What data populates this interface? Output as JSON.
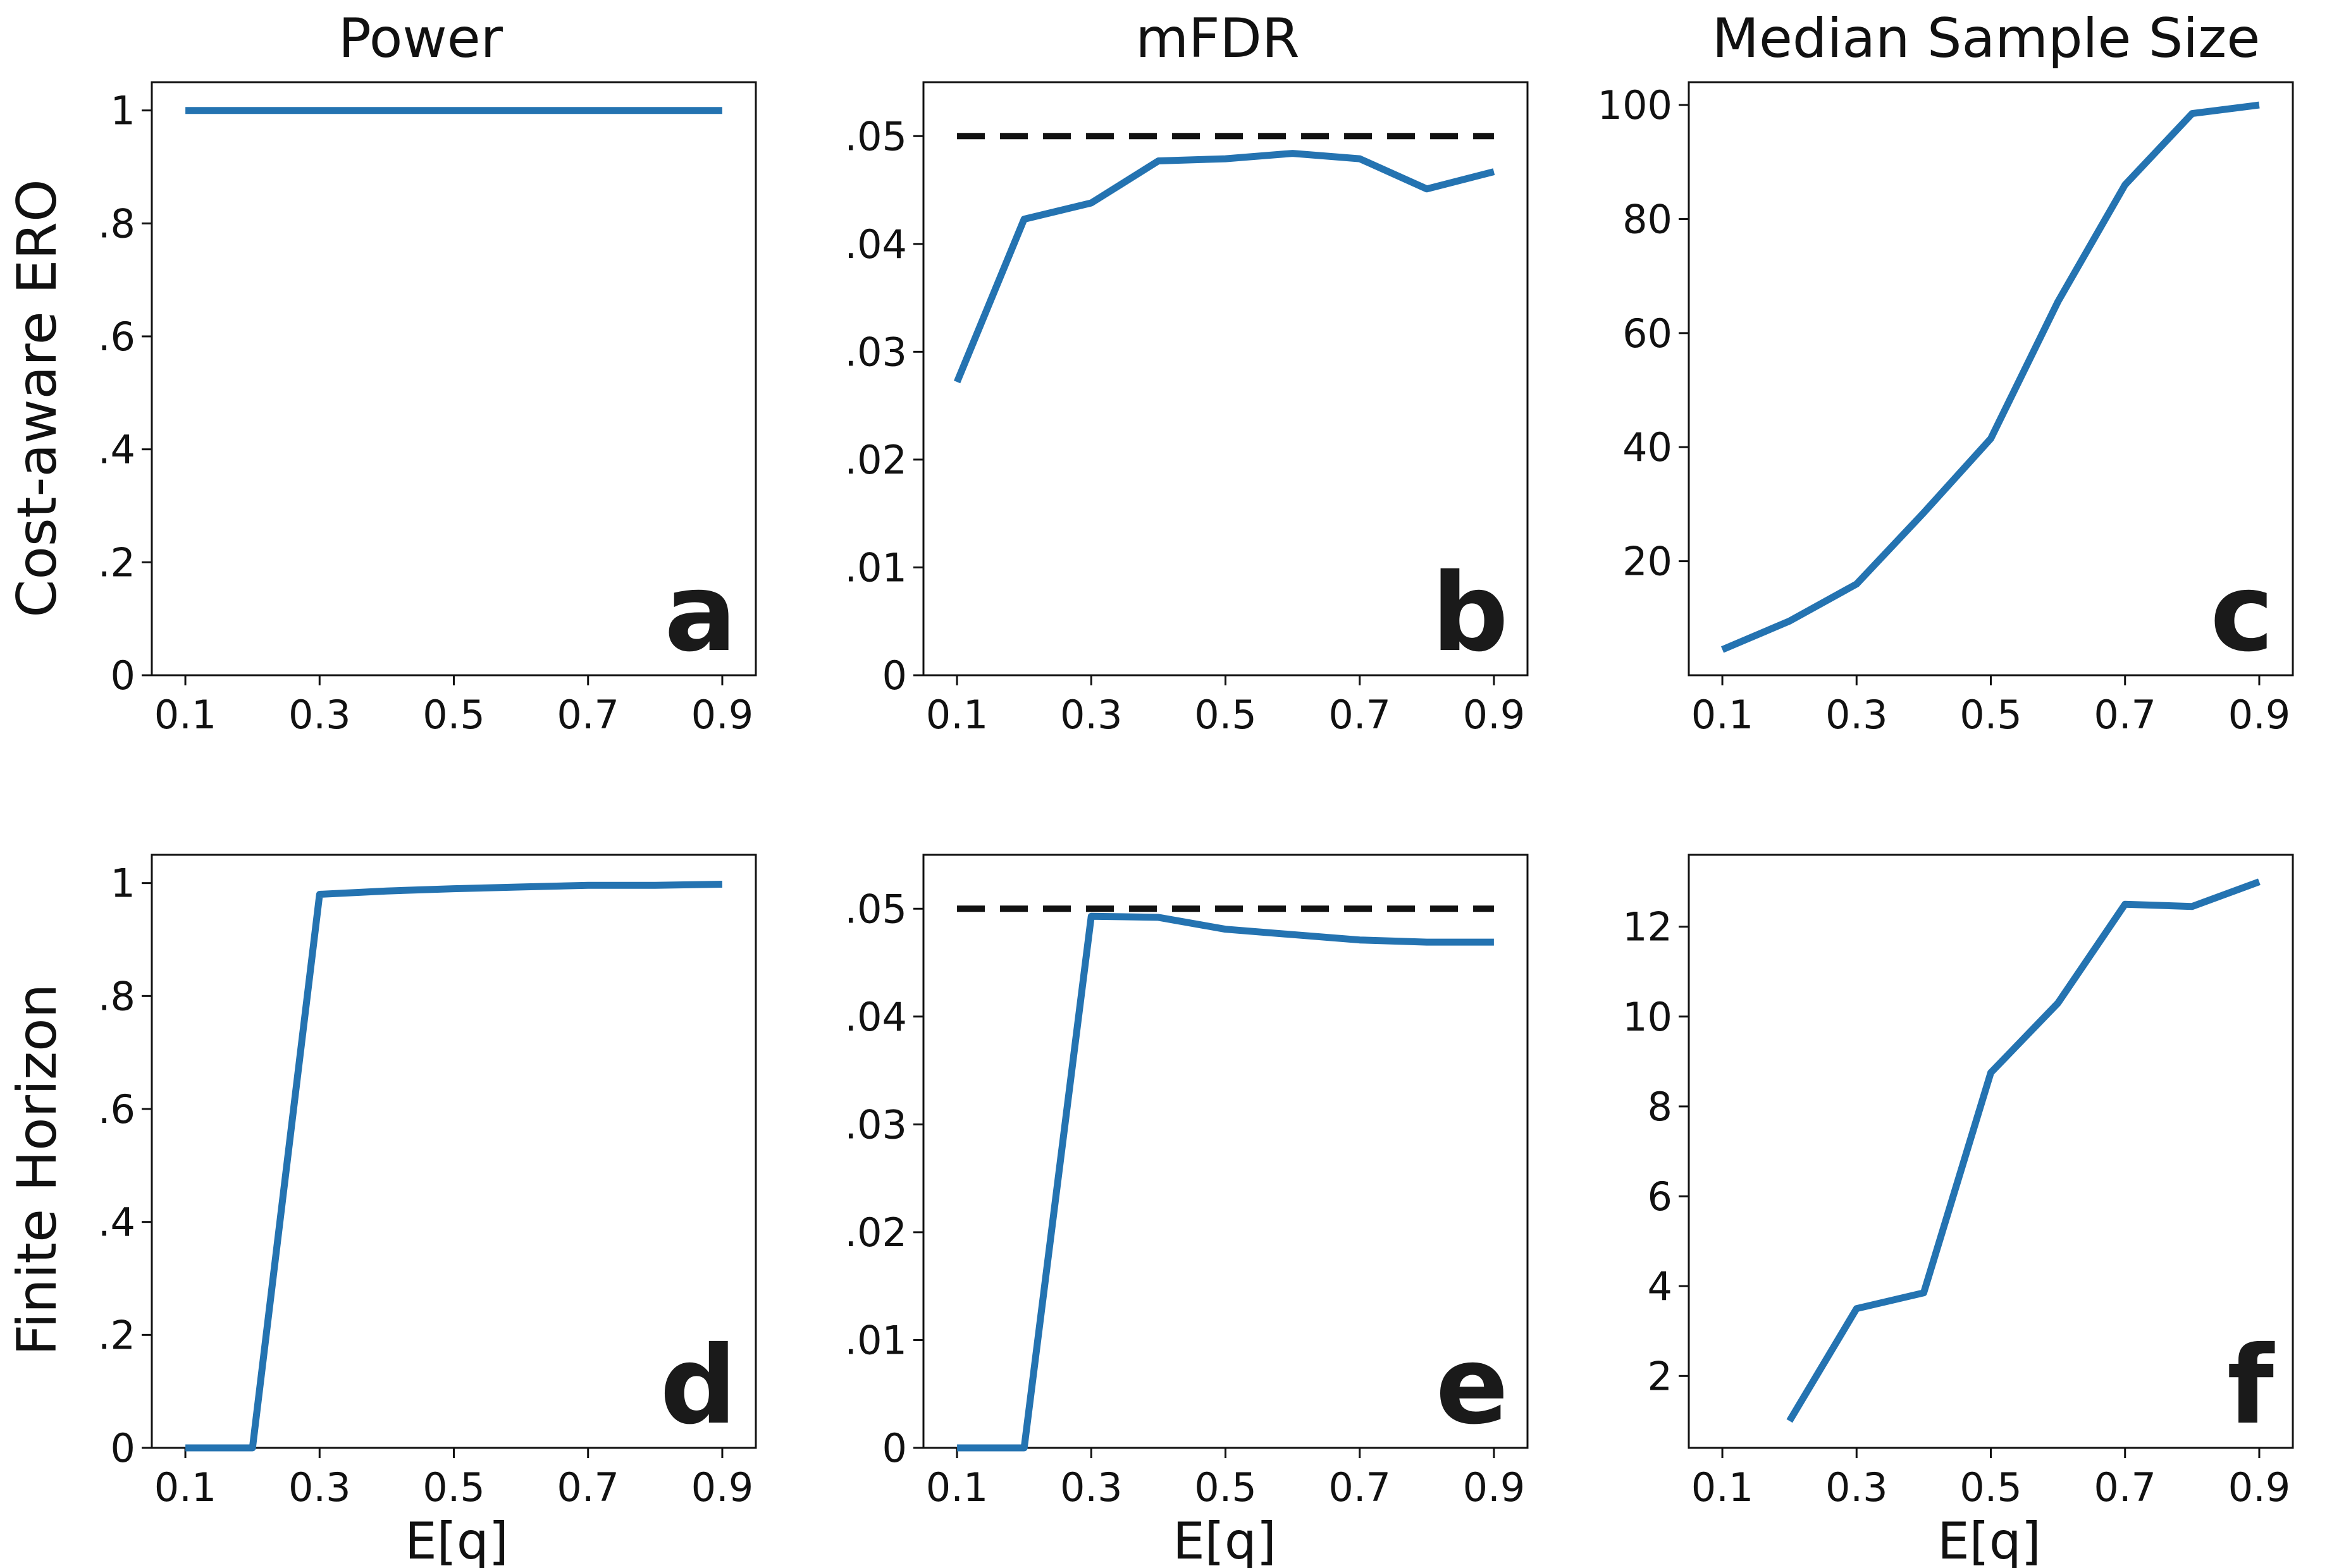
{
  "figure": {
    "column_titles": [
      "Power",
      "mFDR",
      "Median Sample Size"
    ],
    "row_labels": [
      "Cost-aware ERO",
      "Finite Horizon"
    ],
    "x_axis_label": "E[q]"
  },
  "colors": {
    "series": "#2473b1",
    "reference": "#111111",
    "axes": "#111111"
  },
  "chart_data": [
    {
      "panel": "a",
      "type": "line",
      "title": "Power",
      "ylabel": "Cost-aware ERO",
      "xlabel": "",
      "x": [
        0.1,
        0.2,
        0.3,
        0.4,
        0.5,
        0.6,
        0.7,
        0.8,
        0.9
      ],
      "series": [
        {
          "values": [
            1,
            1,
            1,
            1,
            1,
            1,
            1,
            1,
            1
          ]
        }
      ],
      "xlim": [
        0.05,
        0.95
      ],
      "ylim": [
        0,
        1.05
      ],
      "xticks": [
        0.1,
        0.3,
        0.5,
        0.7,
        0.9
      ],
      "xtick_labels": [
        "0.1",
        "0.3",
        "0.5",
        "0.7",
        "0.9"
      ],
      "yticks": [
        0,
        0.2,
        0.4,
        0.6,
        0.8,
        1
      ],
      "ytick_labels": [
        "0",
        ".2",
        ".4",
        ".6",
        ".8",
        "1"
      ]
    },
    {
      "panel": "b",
      "type": "line",
      "title": "mFDR",
      "xlabel": "",
      "x": [
        0.1,
        0.2,
        0.3,
        0.4,
        0.5,
        0.6,
        0.7,
        0.8,
        0.9
      ],
      "series": [
        {
          "values": [
            0.0272,
            0.0423,
            0.0438,
            0.0477,
            0.0479,
            0.0484,
            0.0479,
            0.0451,
            0.0467
          ]
        }
      ],
      "reference_line": 0.05,
      "xlim": [
        0.05,
        0.95
      ],
      "ylim": [
        0,
        0.055
      ],
      "xticks": [
        0.1,
        0.3,
        0.5,
        0.7,
        0.9
      ],
      "xtick_labels": [
        "0.1",
        "0.3",
        "0.5",
        "0.7",
        "0.9"
      ],
      "yticks": [
        0,
        0.01,
        0.02,
        0.03,
        0.04,
        0.05
      ],
      "ytick_labels": [
        "0",
        ".01",
        ".02",
        ".03",
        ".04",
        ".05"
      ]
    },
    {
      "panel": "c",
      "type": "line",
      "title": "Median Sample Size",
      "xlabel": "",
      "x": [
        0.1,
        0.2,
        0.3,
        0.4,
        0.5,
        0.6,
        0.7,
        0.8,
        0.9
      ],
      "series": [
        {
          "values": [
            4.5,
            9.5,
            16,
            28.5,
            41.5,
            65.5,
            86,
            98.5,
            100
          ]
        }
      ],
      "xlim": [
        0.05,
        0.95
      ],
      "ylim": [
        0,
        104
      ],
      "xticks": [
        0.1,
        0.3,
        0.5,
        0.7,
        0.9
      ],
      "xtick_labels": [
        "0.1",
        "0.3",
        "0.5",
        "0.7",
        "0.9"
      ],
      "yticks": [
        20,
        40,
        60,
        80,
        100
      ],
      "ytick_labels": [
        "20",
        "40",
        "60",
        "80",
        "100"
      ]
    },
    {
      "panel": "d",
      "type": "line",
      "ylabel": "Finite Horizon",
      "xlabel": "E[q]",
      "x": [
        0.1,
        0.2,
        0.3,
        0.4,
        0.5,
        0.6,
        0.7,
        0.8,
        0.9
      ],
      "series": [
        {
          "values": [
            0,
            0,
            0.98,
            0.986,
            0.99,
            0.993,
            0.996,
            0.996,
            0.998
          ]
        }
      ],
      "xlim": [
        0.05,
        0.95
      ],
      "ylim": [
        0,
        1.05
      ],
      "xticks": [
        0.1,
        0.3,
        0.5,
        0.7,
        0.9
      ],
      "xtick_labels": [
        "0.1",
        "0.3",
        "0.5",
        "0.7",
        "0.9"
      ],
      "yticks": [
        0,
        0.2,
        0.4,
        0.6,
        0.8,
        1
      ],
      "ytick_labels": [
        "0",
        ".2",
        ".4",
        ".6",
        ".8",
        "1"
      ]
    },
    {
      "panel": "e",
      "type": "line",
      "xlabel": "E[q]",
      "x": [
        0.1,
        0.2,
        0.3,
        0.4,
        0.5,
        0.6,
        0.7,
        0.8,
        0.9
      ],
      "series": [
        {
          "values": [
            0,
            0,
            0.0493,
            0.0492,
            0.0481,
            0.0476,
            0.0471,
            0.0469,
            0.0469
          ]
        }
      ],
      "reference_line": 0.05,
      "xlim": [
        0.05,
        0.95
      ],
      "ylim": [
        0,
        0.055
      ],
      "xticks": [
        0.1,
        0.3,
        0.5,
        0.7,
        0.9
      ],
      "xtick_labels": [
        "0.1",
        "0.3",
        "0.5",
        "0.7",
        "0.9"
      ],
      "yticks": [
        0,
        0.01,
        0.02,
        0.03,
        0.04,
        0.05
      ],
      "ytick_labels": [
        "0",
        ".01",
        ".02",
        ".03",
        ".04",
        ".05"
      ]
    },
    {
      "panel": "f",
      "type": "line",
      "xlabel": "E[q]",
      "x": [
        0.2,
        0.3,
        0.4,
        0.5,
        0.6,
        0.7,
        0.8,
        0.9
      ],
      "series": [
        {
          "values": [
            1,
            3.5,
            3.85,
            8.75,
            10.3,
            12.5,
            12.45,
            13
          ]
        }
      ],
      "xlim": [
        0.05,
        0.95
      ],
      "ylim": [
        0.4,
        13.6
      ],
      "xticks": [
        0.1,
        0.3,
        0.5,
        0.7,
        0.9
      ],
      "xtick_labels": [
        "0.1",
        "0.3",
        "0.5",
        "0.7",
        "0.9"
      ],
      "yticks": [
        2,
        4,
        6,
        8,
        10,
        12
      ],
      "ytick_labels": [
        "2",
        "4",
        "6",
        "8",
        "10",
        "12"
      ]
    }
  ]
}
